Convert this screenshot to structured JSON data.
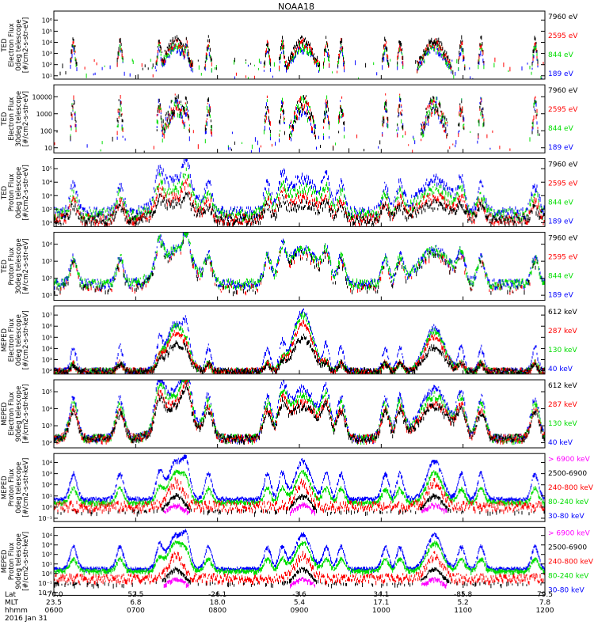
{
  "chart_data": {
    "title": "NOAA18",
    "type": "line",
    "panels": [
      {
        "ylabel": [
          "TED",
          "Electron Flux",
          "0deg telescope",
          "[#/cm2-s-str-eV]"
        ],
        "yticks": [
          "10¹",
          "10²",
          "10³",
          "10⁴",
          "10⁵",
          "10⁶"
        ],
        "scale": "log",
        "ylim_decades": [
          1,
          6
        ],
        "series": [
          {
            "name": "7960 eV",
            "color": "#000000"
          },
          {
            "name": "2595 eV",
            "color": "#ff0000"
          },
          {
            "name": "844 eV",
            "color": "#00dd00"
          },
          {
            "name": "189 eV",
            "color": "#0000ff"
          }
        ],
        "series_order": [
          3,
          2,
          1,
          0
        ],
        "profile": "ted_e0"
      },
      {
        "ylabel": [
          "TED",
          "Electron Flux",
          "30deg telescope",
          "[#/cm2-s-str-eV]"
        ],
        "yticks": [
          "10",
          "100",
          "1000",
          "10000"
        ],
        "scale": "log",
        "ylim_decades": [
          0.5,
          4.2
        ],
        "series": [
          {
            "name": "7960 eV",
            "color": "#000000"
          },
          {
            "name": "2595 eV",
            "color": "#ff0000"
          },
          {
            "name": "844 eV",
            "color": "#00dd00"
          },
          {
            "name": "189 eV",
            "color": "#0000ff"
          }
        ],
        "series_order": [
          3,
          2,
          1,
          0
        ],
        "profile": "ted_e30"
      },
      {
        "ylabel": [
          "TED",
          "Proton Flux",
          "0deg telescope",
          "[#/cm2-s-str-eV]"
        ],
        "yticks": [
          "10¹",
          "10²",
          "10³",
          "10⁴",
          "10⁵"
        ],
        "scale": "log",
        "ylim_decades": [
          1,
          5
        ],
        "series": [
          {
            "name": "7960 eV",
            "color": "#000000"
          },
          {
            "name": "2595 eV",
            "color": "#ff0000"
          },
          {
            "name": "844 eV",
            "color": "#00dd00"
          },
          {
            "name": "189 eV",
            "color": "#0000ff"
          }
        ],
        "series_order": [
          3,
          2,
          1,
          0
        ],
        "profile": "ted_p0"
      },
      {
        "ylabel": [
          "TED",
          "Proton Flux",
          "30deg telescope",
          "[#/cm2-s-str-eV]"
        ],
        "yticks": [
          "10¹",
          "10²",
          "10³",
          "10⁴"
        ],
        "scale": "log",
        "ylim_decades": [
          0.6,
          4.6
        ],
        "series": [
          {
            "name": "7960 eV",
            "color": "#000000"
          },
          {
            "name": "2595 eV",
            "color": "#ff0000"
          },
          {
            "name": "844 eV",
            "color": "#00dd00"
          },
          {
            "name": "189 eV",
            "color": "#0000ff"
          }
        ],
        "series_order": [
          3,
          2,
          1,
          0
        ],
        "profile": "ted_p30"
      },
      {
        "ylabel": [
          "MEPED",
          "Electron Flux",
          "0deg telescope",
          "[#/cm2-s-str-keV]"
        ],
        "yticks": [
          "10²",
          "10³",
          "10⁴",
          "10⁵",
          "10⁶",
          "10⁷"
        ],
        "scale": "log",
        "ylim_decades": [
          2,
          7
        ],
        "series": [
          {
            "name": "612 keV",
            "color": "#000000"
          },
          {
            "name": "287 keV",
            "color": "#ff0000"
          },
          {
            "name": "130 keV",
            "color": "#00dd00"
          },
          {
            "name": "40 keV",
            "color": "#0000ff"
          }
        ],
        "series_order": [
          3,
          2,
          1,
          0
        ],
        "profile": "meped_e0"
      },
      {
        "ylabel": [
          "MEPED",
          "Electron Flux",
          "90deg telescope",
          "[#/cm2-s-str-keV]"
        ],
        "yticks": [
          "10²",
          "10³",
          "10⁴",
          "10⁵"
        ],
        "scale": "log",
        "ylim_decades": [
          1.6,
          5.4
        ],
        "series": [
          {
            "name": "612 keV",
            "color": "#000000"
          },
          {
            "name": "287 keV",
            "color": "#ff0000"
          },
          {
            "name": "130 keV",
            "color": "#00dd00"
          },
          {
            "name": "40 keV",
            "color": "#0000ff"
          }
        ],
        "series_order": [
          3,
          2,
          1,
          0
        ],
        "profile": "meped_e90"
      },
      {
        "ylabel": [
          "MEPED",
          "Proton Flux",
          "0deg telescope",
          "[#/cm2-s-str-keV]"
        ],
        "yticks": [
          "10⁻¹",
          "10⁰",
          "10¹",
          "10²",
          "10³",
          "10⁴"
        ],
        "scale": "log",
        "ylim_decades": [
          -1.6,
          4.2
        ],
        "series": [
          {
            "name": "> 6900 keV",
            "color": "#ff00ff"
          },
          {
            "name": "2500-6900",
            "color": "#000000"
          },
          {
            "name": "240-800 keV",
            "color": "#ff0000"
          },
          {
            "name": "80-240 keV",
            "color": "#00dd00"
          },
          {
            "name": "30-80 keV",
            "color": "#0000ff"
          }
        ],
        "series_order": [
          4,
          3,
          2,
          1,
          0
        ],
        "profile": "meped_p0"
      },
      {
        "ylabel": [
          "MEPED",
          "Proton Flux",
          "90deg telescope",
          "[#/cm2-s-str-keV]"
        ],
        "yticks": [
          "10⁻²",
          "10⁻¹",
          "10⁰",
          "10¹",
          "10²",
          "10³",
          "10⁴"
        ],
        "scale": "log",
        "ylim_decades": [
          -2.4,
          4.3
        ],
        "series": [
          {
            "name": "> 6900 keV",
            "color": "#ff00ff"
          },
          {
            "name": "2500-6900",
            "color": "#000000"
          },
          {
            "name": "240-800 keV",
            "color": "#ff0000"
          },
          {
            "name": "80-240 keV",
            "color": "#00dd00"
          },
          {
            "name": "30-80 keV",
            "color": "#0000ff"
          }
        ],
        "series_order": [
          4,
          3,
          2,
          1,
          0
        ],
        "profile": "meped_p90"
      }
    ],
    "x_axis": {
      "row_labels": [
        "Lat",
        "MLT",
        "hhmm",
        "2016 Jan 31"
      ],
      "ticks": [
        {
          "lat": "-70.0",
          "mlt": "23.5",
          "hhmm": "0600",
          "frac": 0.0
        },
        {
          "lat": "52.5",
          "mlt": "6.8",
          "hhmm": "0700",
          "frac": 0.1667
        },
        {
          "lat": "-26.1",
          "mlt": "18.0",
          "hhmm": "0800",
          "frac": 0.3333
        },
        {
          "lat": "-3.6",
          "mlt": "5.4",
          "hhmm": "0900",
          "frac": 0.5
        },
        {
          "lat": "34.1",
          "mlt": "17.1",
          "hhmm": "1000",
          "frac": 0.6667
        },
        {
          "lat": "-85.8",
          "mlt": "5.2",
          "hhmm": "1100",
          "frac": 0.8333
        },
        {
          "lat": "79.5",
          "mlt": "7.8",
          "hhmm": "1200",
          "frac": 1.0
        }
      ]
    },
    "events": {
      "belt_passes_frac": [
        0.249,
        0.507,
        0.775
      ],
      "auroral_spikes_frac": [
        0.04,
        0.135,
        0.215,
        0.27,
        0.315,
        0.435,
        0.465,
        0.555,
        0.585,
        0.675,
        0.705,
        0.83,
        0.87,
        0.98
      ]
    }
  }
}
